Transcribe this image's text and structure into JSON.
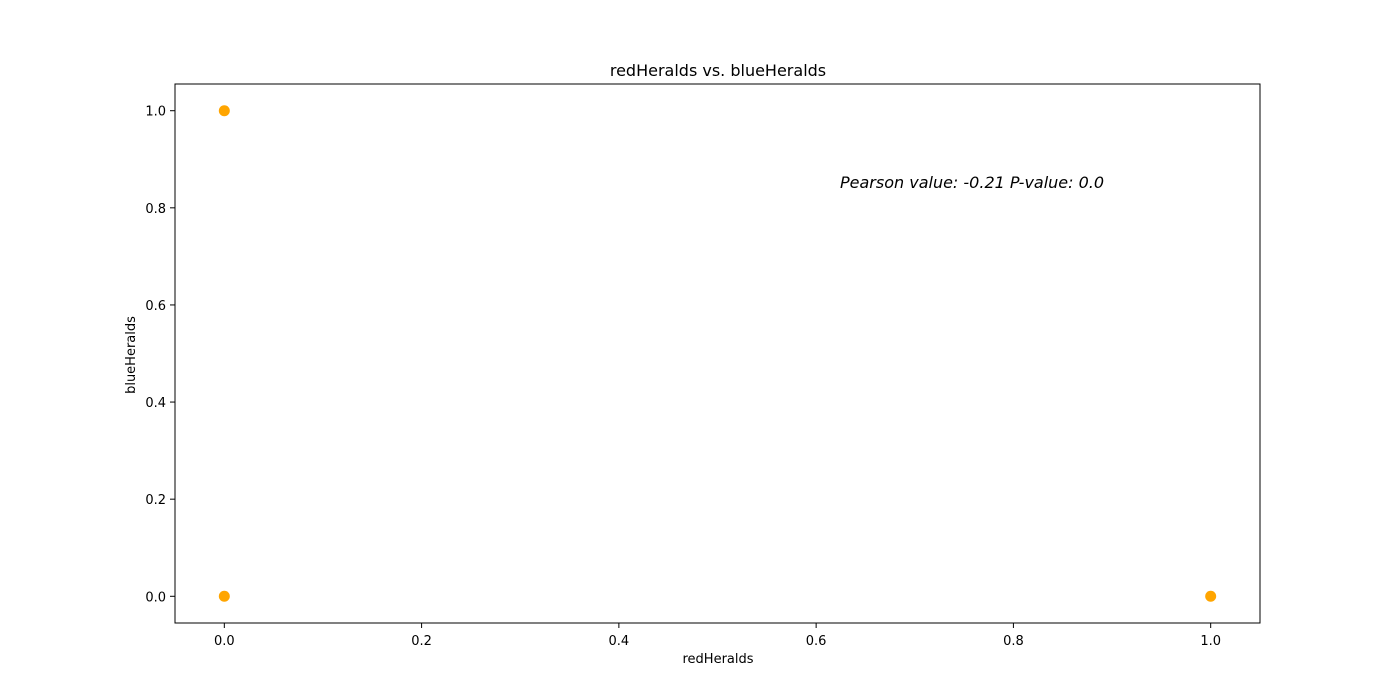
{
  "chart_data": {
    "type": "scatter",
    "title": "redHeralds vs. blueHeralds",
    "xlabel": "redHeralds",
    "ylabel": "blueHeralds",
    "xlim": [
      -0.05,
      1.05
    ],
    "ylim": [
      -0.055,
      1.055
    ],
    "x_ticks": [
      0.0,
      0.2,
      0.4,
      0.6,
      0.8,
      1.0
    ],
    "x_tick_labels": [
      "0.0",
      "0.2",
      "0.4",
      "0.6",
      "0.8",
      "1.0"
    ],
    "y_ticks": [
      0.0,
      0.2,
      0.4,
      0.6,
      0.8,
      1.0
    ],
    "y_tick_labels": [
      "0.0",
      "0.2",
      "0.4",
      "0.6",
      "0.8",
      "1.0"
    ],
    "grid": false,
    "marker_color": "#ffa500",
    "points": [
      {
        "x": 0,
        "y": 1
      },
      {
        "x": 0,
        "y": 0
      },
      {
        "x": 1,
        "y": 0
      }
    ],
    "annotation": {
      "text": "Pearson value: -0.21   P-value: 0.0",
      "x": 0.61,
      "y": 0.845
    }
  }
}
